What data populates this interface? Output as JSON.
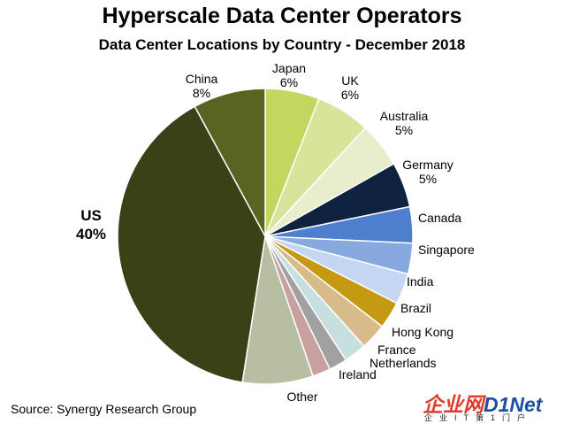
{
  "title": "Hyperscale Data Center Operators",
  "subtitle": "Data Center Locations by Country - December 2018",
  "source": "Source: Synergy Research Group",
  "watermark": {
    "main_a": "企业网",
    "main_b": "D1Net",
    "sub": "企业IT第1门户"
  },
  "chart_data": {
    "type": "pie",
    "title": "Hyperscale Data Center Operators",
    "subtitle": "Data Center Locations by Country - December 2018",
    "start_angle_deg": 0,
    "direction": "clockwise",
    "slices": [
      {
        "name": "Japan",
        "value": 6,
        "label": "Japan",
        "pct_label": "6%",
        "color": "#c4d65e"
      },
      {
        "name": "UK",
        "value": 6,
        "label": "UK",
        "pct_label": "6%",
        "color": "#d9e39a"
      },
      {
        "name": "Australia",
        "value": 5,
        "label": "Australia",
        "pct_label": "5%",
        "color": "#e8eecb"
      },
      {
        "name": "Germany",
        "value": 5,
        "label": "Germany",
        "pct_label": "5%",
        "color": "#0f2340"
      },
      {
        "name": "Canada",
        "value": 4,
        "label": "Canada",
        "pct_label": "",
        "color": "#4e7fcf"
      },
      {
        "name": "Singapore",
        "value": 3.4,
        "label": "Singapore",
        "pct_label": "",
        "color": "#87a9e0"
      },
      {
        "name": "India",
        "value": 3.4,
        "label": "India",
        "pct_label": "",
        "color": "#c4d6f1"
      },
      {
        "name": "Brazil",
        "value": 3,
        "label": "Brazil",
        "pct_label": "",
        "color": "#c59a12"
      },
      {
        "name": "Hong Kong",
        "value": 2.9,
        "label": "Hong Kong",
        "pct_label": "",
        "color": "#d8bb8a"
      },
      {
        "name": "France",
        "value": 2.5,
        "label": "France",
        "pct_label": "",
        "color": "#c7e0df"
      },
      {
        "name": "Netherlands",
        "value": 2,
        "label": "Netherlands",
        "pct_label": "",
        "color": "#a1a1a1"
      },
      {
        "name": "Ireland",
        "value": 2,
        "label": "Ireland",
        "pct_label": "",
        "color": "#c9a0a0"
      },
      {
        "name": "Other",
        "value": 7.8,
        "label": "Other",
        "pct_label": "",
        "color": "#b8bea2"
      },
      {
        "name": "US",
        "value": 40,
        "label": "US",
        "pct_label": "40%",
        "color": "#3a4117"
      },
      {
        "name": "China",
        "value": 8,
        "label": "China",
        "pct_label": "8%",
        "color": "#5a6422"
      }
    ]
  }
}
